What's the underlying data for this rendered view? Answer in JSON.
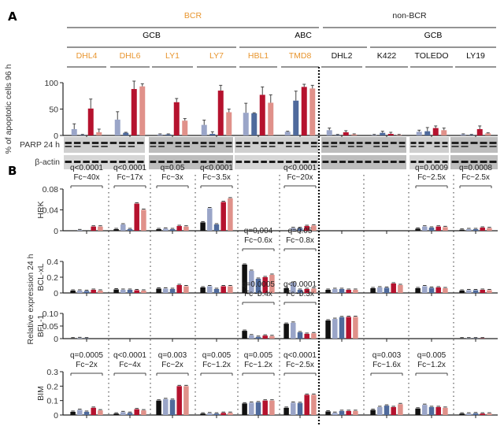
{
  "figure": {
    "panel_a_label": "A",
    "panel_b_label": "B",
    "header": {
      "top": [
        {
          "label": "BCR",
          "color": "#e8952e"
        },
        {
          "label": "non-BCR",
          "color": "#222222"
        }
      ],
      "middle": [
        {
          "label": "GCB"
        },
        {
          "label": "ABC"
        },
        {
          "label": "GCB"
        }
      ],
      "cell_lines": [
        {
          "label": "DHL4",
          "group": "BCR"
        },
        {
          "label": "DHL6",
          "group": "BCR"
        },
        {
          "label": "LY1",
          "group": "BCR"
        },
        {
          "label": "LY7",
          "group": "BCR"
        },
        {
          "label": "HBL1",
          "group": "BCR"
        },
        {
          "label": "TMD8",
          "group": "BCR"
        },
        {
          "label": "DHL2",
          "group": "non-BCR"
        },
        {
          "label": "K422",
          "group": "non-BCR"
        },
        {
          "label": "TOLEDO",
          "group": "non-BCR"
        },
        {
          "label": "LY19",
          "group": "non-BCR"
        }
      ]
    },
    "colors": {
      "bcr_label": "#e8952e",
      "black": "#111111",
      "light_blue": "#9aa5c8",
      "blue": "#4f6a9c",
      "red": "#b5122e",
      "pink": "#e0918a",
      "blot_bg": "#c9c9c9"
    },
    "blot": {
      "parp_label": "PARP  24 h",
      "actin_label": "β-actin"
    },
    "panel_b_ylabel": "Relative expression 24 h"
  },
  "chart_data": [
    {
      "type": "bar",
      "title": "",
      "ylabel": "% of apoptotic cells 96 h",
      "ylim": [
        0,
        100
      ],
      "yticks": [
        "0",
        "50",
        "100"
      ],
      "categories": [
        "DHL4",
        "DHL6",
        "LY1",
        "LY7",
        "HBL1",
        "TMD8",
        "DHL2",
        "K422",
        "TOLEDO",
        "LY19"
      ],
      "series": [
        {
          "name": "condition-2",
          "color": "#9aa5c8",
          "values": [
            12,
            30,
            2,
            20,
            43,
            7,
            10,
            1,
            7,
            2
          ],
          "errors": [
            10,
            15,
            1,
            9,
            18,
            1,
            4,
            1,
            3,
            1
          ]
        },
        {
          "name": "condition-3",
          "color": "#4f6a9c",
          "values": [
            1,
            5,
            2,
            3,
            42,
            66,
            1,
            5,
            8,
            1
          ],
          "errors": [
            1,
            1,
            1,
            4,
            1,
            18,
            1,
            3,
            7,
            1
          ]
        },
        {
          "name": "condition-4",
          "color": "#b5122e",
          "values": [
            51,
            88,
            63,
            85,
            77,
            92,
            6,
            3,
            14,
            12
          ],
          "errors": [
            18,
            15,
            7,
            10,
            15,
            5,
            3,
            3,
            4,
            6
          ]
        },
        {
          "name": "condition-5",
          "color": "#e0918a",
          "values": [
            6,
            93,
            28,
            44,
            62,
            89,
            2,
            1,
            10,
            4
          ],
          "errors": [
            6,
            5,
            4,
            6,
            15,
            6,
            1,
            1,
            4,
            1
          ]
        }
      ]
    },
    {
      "type": "bar",
      "ylabel": "HRK",
      "ylim": [
        0,
        0.08
      ],
      "yticks": [
        "0",
        "0.04",
        "0.08"
      ],
      "categories": [
        "DHL4",
        "DHL6",
        "LY1",
        "LY7",
        "HBL1",
        "TMD8",
        "DHL2",
        "K422",
        "TOLEDO",
        "LY19"
      ],
      "series": [
        {
          "name": "condition-1",
          "color": "#111111",
          "values": [
            0,
            0.003,
            0.003,
            0.016,
            0,
            0,
            0,
            0,
            0.004,
            0.002
          ]
        },
        {
          "name": "condition-2",
          "color": "#9aa5c8",
          "values": [
            0.001,
            0.012,
            0.004,
            0.043,
            0,
            0.005,
            0,
            0,
            0.008,
            0.003
          ]
        },
        {
          "name": "condition-3",
          "color": "#4f6a9c",
          "values": [
            0,
            0.003,
            0.003,
            0.012,
            0,
            0.005,
            0,
            0,
            0.006,
            0.003
          ]
        },
        {
          "name": "condition-4",
          "color": "#b5122e",
          "values": [
            0.008,
            0.052,
            0.009,
            0.055,
            0,
            0.009,
            0,
            0,
            0.008,
            0.006
          ]
        },
        {
          "name": "condition-5",
          "color": "#e0918a",
          "values": [
            0.008,
            0.04,
            0.008,
            0.062,
            0,
            0.01,
            0,
            0,
            0.007,
            0.005
          ]
        }
      ],
      "annotations": [
        {
          "category": "DHL4",
          "q": "q<0.0001",
          "fc": "Fc~40x"
        },
        {
          "category": "DHL6",
          "q": "q<0.0001",
          "fc": "Fc~17x"
        },
        {
          "category": "LY1",
          "q": "q=0.05",
          "fc": "Fc~3x"
        },
        {
          "category": "LY7",
          "q": "q<0.0001",
          "fc": "Fc~3.5x"
        },
        {
          "category": "TMD8",
          "q": "q<0.0001",
          "fc": "Fc~20x"
        },
        {
          "category": "TOLEDO",
          "q": "q=0.0009",
          "fc": "Fc~2.5x"
        },
        {
          "category": "LY19",
          "q": "q=0.0008",
          "fc": "Fc~2.5x"
        }
      ]
    },
    {
      "type": "bar",
      "ylabel": "BCL-xL",
      "ylim": [
        0,
        0.4
      ],
      "yticks": [
        "0",
        "0.2",
        "0.4"
      ],
      "categories": [
        "DHL4",
        "DHL6",
        "LY1",
        "LY7",
        "HBL1",
        "TMD8",
        "DHL2",
        "K422",
        "TOLEDO",
        "LY19"
      ],
      "series": [
        {
          "name": "condition-1",
          "color": "#111111",
          "values": [
            0.03,
            0.045,
            0.055,
            0.07,
            0.36,
            0.06,
            0.04,
            0.06,
            0.06,
            0.03
          ]
        },
        {
          "name": "condition-2",
          "color": "#9aa5c8",
          "values": [
            0.03,
            0.04,
            0.055,
            0.085,
            0.28,
            0.13,
            0.05,
            0.07,
            0.085,
            0.035
          ]
        },
        {
          "name": "condition-3",
          "color": "#4f6a9c",
          "values": [
            0.025,
            0.04,
            0.05,
            0.05,
            0.18,
            0.04,
            0.05,
            0.065,
            0.065,
            0.035
          ]
        },
        {
          "name": "condition-4",
          "color": "#b5122e",
          "values": [
            0.04,
            0.035,
            0.1,
            0.085,
            0.2,
            0.05,
            0.04,
            0.12,
            0.07,
            0.04
          ]
        },
        {
          "name": "condition-5",
          "color": "#e0918a",
          "values": [
            0.03,
            0.03,
            0.085,
            0.085,
            0.23,
            0.055,
            0.04,
            0.1,
            0.06,
            0.035
          ]
        }
      ],
      "annotations": [
        {
          "category": "HBL1",
          "q": "q=0.004",
          "fc": "Fc~0.6x"
        },
        {
          "category": "TMD8",
          "q": "q=0.05",
          "fc": "Fc~0.8x"
        }
      ]
    },
    {
      "type": "bar",
      "ylabel": "BFL-1",
      "ylim": [
        0,
        0.1
      ],
      "yticks": [
        "0",
        "0.05",
        "0.10"
      ],
      "categories": [
        "DHL4",
        "DHL6",
        "LY1",
        "LY7",
        "HBL1",
        "TMD8",
        "DHL2",
        "K422",
        "TOLEDO",
        "LY19"
      ],
      "series": [
        {
          "name": "condition-1",
          "color": "#111111",
          "values": [
            0.001,
            0,
            0,
            0,
            0.031,
            0.059,
            0.072,
            0,
            0,
            0.001
          ]
        },
        {
          "name": "condition-2",
          "color": "#9aa5c8",
          "values": [
            0.002,
            0,
            0,
            0,
            0.013,
            0.063,
            0.078,
            0,
            0,
            0.001
          ]
        },
        {
          "name": "condition-3",
          "color": "#4f6a9c",
          "values": [
            0.001,
            0,
            0,
            0,
            0.007,
            0.025,
            0.085,
            0,
            0,
            0.001
          ]
        },
        {
          "name": "condition-4",
          "color": "#b5122e",
          "values": [
            0,
            0,
            0,
            0,
            0.012,
            0.019,
            0.086,
            0,
            0,
            0.001
          ]
        },
        {
          "name": "condition-5",
          "color": "#e0918a",
          "values": [
            0,
            0,
            0,
            0,
            0.01,
            0.021,
            0.086,
            0,
            0,
            0
          ]
        }
      ],
      "annotations": [
        {
          "category": "HBL1",
          "q": "q=0.0005",
          "fc": "Fc~0.4x"
        },
        {
          "category": "TMD8",
          "q": "q<0.0001",
          "fc": "Fc~0.3x"
        }
      ]
    },
    {
      "type": "bar",
      "ylabel": "BIM",
      "ylim": [
        0,
        0.3
      ],
      "yticks": [
        "0",
        "0.1",
        "0.2",
        "0.3"
      ],
      "categories": [
        "DHL4",
        "DHL6",
        "LY1",
        "LY7",
        "HBL1",
        "TMD8",
        "DHL2",
        "K422",
        "TOLEDO",
        "LY19"
      ],
      "series": [
        {
          "name": "condition-1",
          "color": "#111111",
          "values": [
            0.022,
            0.01,
            0.1,
            0.01,
            0.08,
            0.05,
            0.025,
            0.035,
            0.045,
            0.01
          ]
        },
        {
          "name": "condition-2",
          "color": "#9aa5c8",
          "values": [
            0.035,
            0.02,
            0.11,
            0.012,
            0.085,
            0.085,
            0.015,
            0.055,
            0.07,
            0.01
          ]
        },
        {
          "name": "condition-3",
          "color": "#4f6a9c",
          "values": [
            0.022,
            0.015,
            0.105,
            0.01,
            0.088,
            0.083,
            0.028,
            0.065,
            0.055,
            0.012
          ]
        },
        {
          "name": "condition-4",
          "color": "#b5122e",
          "values": [
            0.05,
            0.04,
            0.2,
            0.015,
            0.1,
            0.14,
            0.028,
            0.055,
            0.055,
            0.01
          ]
        },
        {
          "name": "condition-5",
          "color": "#e0918a",
          "values": [
            0.032,
            0.032,
            0.2,
            0.015,
            0.1,
            0.14,
            0.028,
            0.075,
            0.05,
            0.01
          ]
        }
      ],
      "annotations": [
        {
          "category": "DHL4",
          "q": "q=0.0005",
          "fc": "Fc~2x"
        },
        {
          "category": "DHL6",
          "q": "q<0.0001",
          "fc": "Fc~4x"
        },
        {
          "category": "LY1",
          "q": "q=0.003",
          "fc": "Fc~2x"
        },
        {
          "category": "LY7",
          "q": "q=0.005",
          "fc": "Fc~1.2x"
        },
        {
          "category": "HBL1",
          "q": "q=0.005",
          "fc": "Fc~1.2x"
        },
        {
          "category": "TMD8",
          "q": "q<0.0001",
          "fc": "Fc~2.5x"
        },
        {
          "category": "K422",
          "q": "q=0.003",
          "fc": "Fc~1.6x"
        },
        {
          "category": "TOLEDO",
          "q": "q=0.005",
          "fc": "Fc~1.2x"
        }
      ]
    }
  ]
}
